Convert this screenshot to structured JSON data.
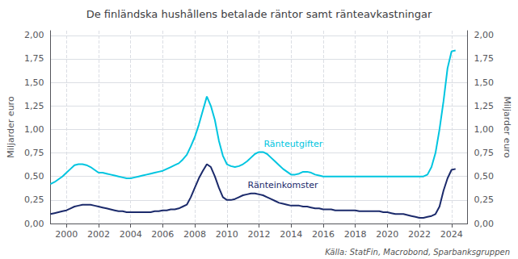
{
  "chart_data": {
    "type": "line",
    "title": "De finländska hushållens betalade räntor samt ränteavkastningar",
    "ylabel": "Miljarder euro",
    "y2label": "Miljarder euro",
    "source": "Källa: StatFin, Macrobond, Sparbanksgruppen",
    "x": [
      1999.0,
      1999.25,
      1999.5,
      1999.75,
      2000.0,
      2000.25,
      2000.5,
      2000.75,
      2001.0,
      2001.25,
      2001.5,
      2001.75,
      2002.0,
      2002.25,
      2002.5,
      2002.75,
      2003.0,
      2003.25,
      2003.5,
      2003.75,
      2004.0,
      2004.25,
      2004.5,
      2004.75,
      2005.0,
      2005.25,
      2005.5,
      2005.75,
      2006.0,
      2006.25,
      2006.5,
      2006.75,
      2007.0,
      2007.25,
      2007.5,
      2007.75,
      2008.0,
      2008.25,
      2008.5,
      2008.75,
      2009.0,
      2009.25,
      2009.5,
      2009.75,
      2010.0,
      2010.25,
      2010.5,
      2010.75,
      2011.0,
      2011.25,
      2011.5,
      2011.75,
      2012.0,
      2012.25,
      2012.5,
      2012.75,
      2013.0,
      2013.25,
      2013.5,
      2013.75,
      2014.0,
      2014.25,
      2014.5,
      2014.75,
      2015.0,
      2015.25,
      2015.5,
      2015.75,
      2016.0,
      2016.25,
      2016.5,
      2016.75,
      2017.0,
      2017.25,
      2017.5,
      2017.75,
      2018.0,
      2018.25,
      2018.5,
      2018.75,
      2019.0,
      2019.25,
      2019.5,
      2019.75,
      2020.0,
      2020.25,
      2020.5,
      2020.75,
      2021.0,
      2021.25,
      2021.5,
      2021.75,
      2022.0,
      2022.25,
      2022.5,
      2022.75,
      2023.0,
      2023.25,
      2023.5,
      2023.75,
      2024.0,
      2024.25
    ],
    "series": [
      {
        "name": "Ränteutgifter",
        "color": "#00C5E0",
        "values": [
          0.42,
          0.44,
          0.47,
          0.5,
          0.54,
          0.58,
          0.62,
          0.63,
          0.63,
          0.62,
          0.6,
          0.57,
          0.54,
          0.54,
          0.53,
          0.52,
          0.51,
          0.5,
          0.49,
          0.48,
          0.48,
          0.49,
          0.5,
          0.51,
          0.52,
          0.53,
          0.54,
          0.55,
          0.56,
          0.58,
          0.6,
          0.62,
          0.64,
          0.68,
          0.73,
          0.82,
          0.92,
          1.05,
          1.2,
          1.35,
          1.25,
          1.1,
          0.88,
          0.72,
          0.63,
          0.61,
          0.6,
          0.61,
          0.63,
          0.66,
          0.7,
          0.74,
          0.76,
          0.76,
          0.74,
          0.7,
          0.66,
          0.62,
          0.58,
          0.55,
          0.52,
          0.52,
          0.53,
          0.55,
          0.55,
          0.54,
          0.52,
          0.51,
          0.5,
          0.5,
          0.5,
          0.5,
          0.5,
          0.5,
          0.5,
          0.5,
          0.5,
          0.5,
          0.5,
          0.5,
          0.5,
          0.5,
          0.5,
          0.5,
          0.5,
          0.5,
          0.5,
          0.5,
          0.5,
          0.5,
          0.5,
          0.5,
          0.5,
          0.5,
          0.52,
          0.6,
          0.75,
          1.0,
          1.3,
          1.65,
          1.83,
          1.84
        ]
      },
      {
        "name": "Ränteinkomster",
        "color": "#1B2A6B",
        "values": [
          0.1,
          0.11,
          0.12,
          0.13,
          0.14,
          0.16,
          0.18,
          0.19,
          0.2,
          0.2,
          0.2,
          0.19,
          0.18,
          0.17,
          0.16,
          0.15,
          0.14,
          0.13,
          0.13,
          0.12,
          0.12,
          0.12,
          0.12,
          0.12,
          0.12,
          0.12,
          0.13,
          0.13,
          0.14,
          0.14,
          0.15,
          0.15,
          0.16,
          0.18,
          0.2,
          0.28,
          0.38,
          0.48,
          0.56,
          0.63,
          0.6,
          0.5,
          0.38,
          0.28,
          0.25,
          0.25,
          0.26,
          0.28,
          0.3,
          0.31,
          0.32,
          0.32,
          0.31,
          0.3,
          0.28,
          0.26,
          0.24,
          0.22,
          0.21,
          0.2,
          0.19,
          0.19,
          0.19,
          0.18,
          0.18,
          0.17,
          0.16,
          0.16,
          0.15,
          0.15,
          0.15,
          0.14,
          0.14,
          0.14,
          0.14,
          0.14,
          0.14,
          0.13,
          0.13,
          0.13,
          0.13,
          0.13,
          0.13,
          0.12,
          0.12,
          0.11,
          0.1,
          0.1,
          0.1,
          0.09,
          0.08,
          0.07,
          0.06,
          0.06,
          0.07,
          0.08,
          0.1,
          0.18,
          0.35,
          0.48,
          0.57,
          0.58
        ]
      }
    ],
    "annotations": [
      {
        "text": "Ränteutgifter",
        "x": 2012.3,
        "y": 0.78
      },
      {
        "text": "Ränteinkomster",
        "x": 2011.3,
        "y": 0.34
      }
    ],
    "xlim": [
      1999.0,
      2025.0
    ],
    "xticks": [
      2000,
      2002,
      2004,
      2006,
      2008,
      2010,
      2012,
      2014,
      2016,
      2018,
      2020,
      2022,
      2024
    ],
    "ylim": [
      0.0,
      2.05
    ],
    "yticks": [
      {
        "value": 0.0,
        "label": "0,00"
      },
      {
        "value": 0.25,
        "label": "0,25"
      },
      {
        "value": 0.5,
        "label": "0,50"
      },
      {
        "value": 0.75,
        "label": "0,75"
      },
      {
        "value": 1.0,
        "label": "1,00"
      },
      {
        "value": 1.25,
        "label": "1,25"
      },
      {
        "value": 1.5,
        "label": "1,50"
      },
      {
        "value": 1.75,
        "label": "1,75"
      },
      {
        "value": 2.0,
        "label": "2,00"
      }
    ],
    "y2lim": [
      0.0,
      2.05
    ],
    "y2ticks": [
      {
        "value": 0.0,
        "label": "0,00"
      },
      {
        "value": 0.25,
        "label": "0,25"
      },
      {
        "value": 0.5,
        "label": "0,50"
      },
      {
        "value": 0.75,
        "label": "0,75"
      },
      {
        "value": 1.0,
        "label": "1,00"
      },
      {
        "value": 1.25,
        "label": "1,25"
      },
      {
        "value": 1.5,
        "label": "1,50"
      },
      {
        "value": 1.75,
        "label": "1,75"
      },
      {
        "value": 2.0,
        "label": "2,00"
      }
    ],
    "grid": true
  }
}
